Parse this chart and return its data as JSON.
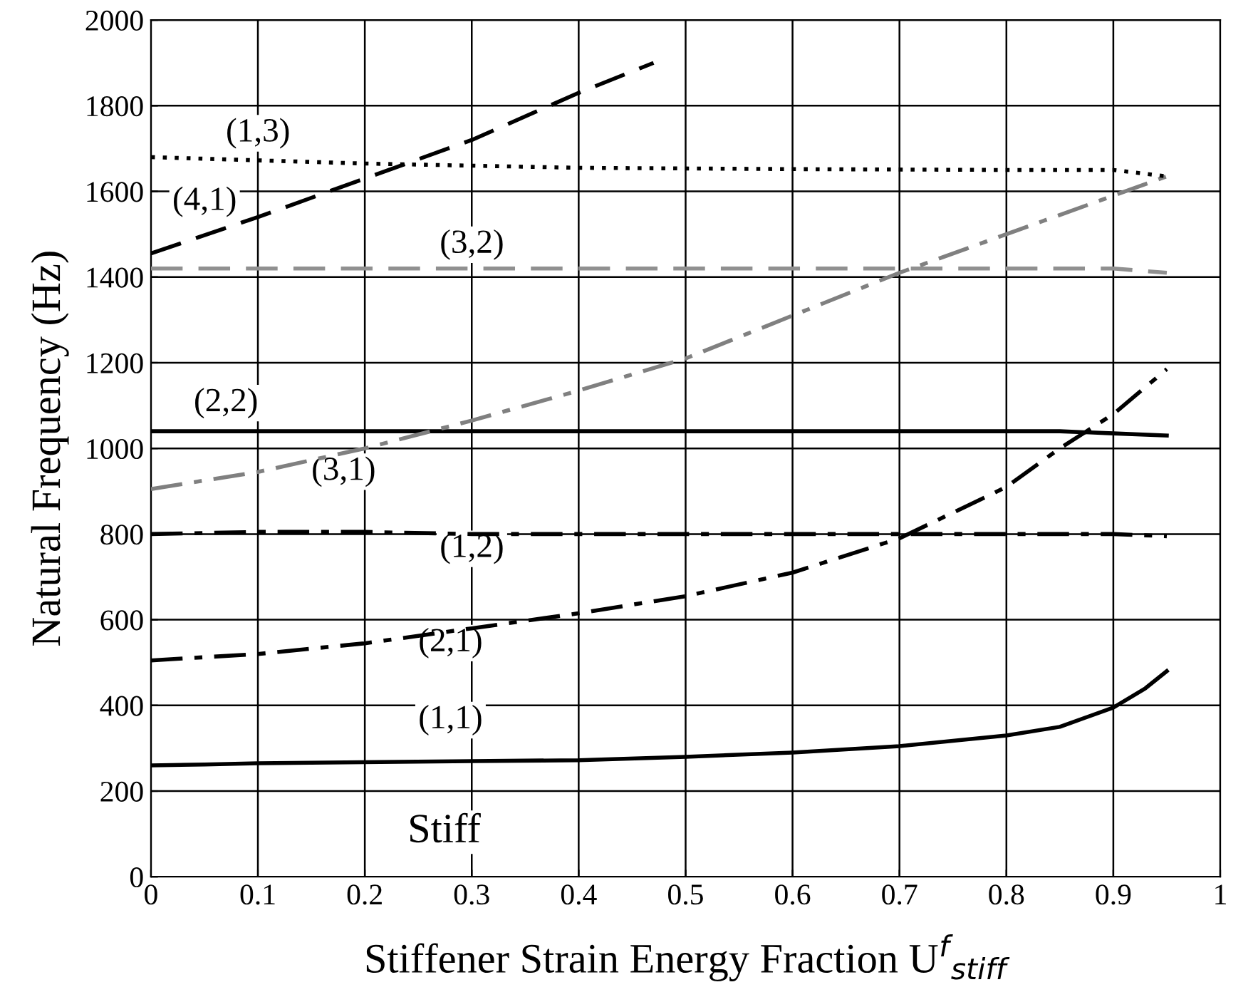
{
  "chart_data": {
    "type": "line",
    "xlabel": "Stiffener Strain Energy Fraction U$^{f}$$_{stiff}$",
    "ylabel": "Natural Frequency (Hz)",
    "xlim": [
      0,
      1
    ],
    "ylim": [
      0,
      2000
    ],
    "xticks": [
      0,
      0.1,
      0.2,
      0.3,
      0.4,
      0.5,
      0.6,
      0.7,
      0.8,
      0.9,
      1
    ],
    "yticks": [
      0,
      200,
      400,
      600,
      800,
      1000,
      1200,
      1400,
      1600,
      1800,
      2000
    ],
    "grid": true,
    "marker": "none",
    "series": [
      {
        "name": "(1,1)",
        "color": "#000000",
        "line_style": "solid",
        "x": [
          0,
          0.05,
          0.1,
          0.3,
          0.4,
          0.5,
          0.6,
          0.7,
          0.8,
          0.85,
          0.9,
          0.93,
          0.95
        ],
        "values": [
          260,
          262,
          265,
          270,
          272,
          280,
          290,
          305,
          330,
          350,
          395,
          440,
          480
        ]
      },
      {
        "name": "(2,1)",
        "color": "#000000",
        "line_style": "dashdot",
        "x": [
          0,
          0.1,
          0.2,
          0.3,
          0.4,
          0.5,
          0.6,
          0.7,
          0.8,
          0.85,
          0.9,
          0.95
        ],
        "values": [
          505,
          520,
          545,
          580,
          615,
          655,
          710,
          790,
          910,
          1000,
          1080,
          1185
        ]
      },
      {
        "name": "(1,2)",
        "color": "#000000",
        "line_style": "dashdot",
        "x": [
          0,
          0.1,
          0.2,
          0.3,
          0.6,
          0.9,
          0.95
        ],
        "values": [
          800,
          805,
          805,
          800,
          800,
          800,
          795
        ]
      },
      {
        "name": "(2,2)",
        "color": "#000000",
        "line_style": "solid",
        "x": [
          0,
          0.3,
          0.6,
          0.85,
          0.9,
          0.95
        ],
        "values": [
          1040,
          1040,
          1040,
          1040,
          1035,
          1030
        ]
      },
      {
        "name": "(3,1)",
        "color": "#808080",
        "line_style": "dashdot",
        "x": [
          0,
          0.1,
          0.2,
          0.3,
          0.4,
          0.5,
          0.6,
          0.7,
          0.8,
          0.9,
          0.95
        ],
        "values": [
          905,
          945,
          1000,
          1065,
          1135,
          1210,
          1310,
          1410,
          1500,
          1590,
          1635
        ]
      },
      {
        "name": "(3,2)",
        "color": "#909090",
        "line_style": "dashed",
        "x": [
          0,
          0.3,
          0.6,
          0.9,
          0.95
        ],
        "values": [
          1420,
          1420,
          1420,
          1420,
          1410
        ]
      },
      {
        "name": "(4,1)",
        "color": "#000000",
        "line_style": "dashed",
        "x": [
          0,
          0.1,
          0.2,
          0.3,
          0.4,
          0.47
        ],
        "values": [
          1455,
          1540,
          1630,
          1720,
          1830,
          1900
        ]
      },
      {
        "name": "(1,3)",
        "color": "#000000",
        "line_style": "dotted",
        "x": [
          0,
          0.2,
          0.4,
          0.6,
          0.8,
          0.9,
          0.95
        ],
        "values": [
          1680,
          1665,
          1655,
          1652,
          1650,
          1650,
          1635
        ]
      }
    ],
    "annotations": [
      "Stiff"
    ]
  }
}
